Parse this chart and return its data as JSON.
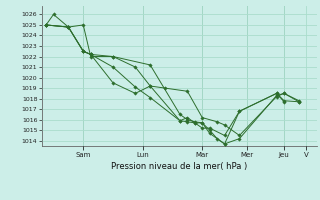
{
  "background_color": "#cceee8",
  "grid_color": "#aaddcc",
  "line_color": "#2d6e2d",
  "marker_color": "#2d6e2d",
  "xlabel": "Pression niveau de la mer( hPa )",
  "ylim": [
    1013.5,
    1026.8
  ],
  "yticks": [
    1014,
    1015,
    1016,
    1017,
    1018,
    1019,
    1020,
    1021,
    1022,
    1023,
    1024,
    1025,
    1026
  ],
  "series": [
    {
      "x": [
        0,
        0.5,
        1.5,
        2.5,
        3.0,
        4.5,
        6.0,
        7.0,
        9.0,
        9.5,
        10.0,
        10.5,
        11.0,
        12.0,
        13.0,
        15.5,
        16.0,
        17.0
      ],
      "y": [
        1025.0,
        1026.0,
        1024.8,
        1022.5,
        1022.2,
        1021.0,
        1019.1,
        1018.1,
        1015.9,
        1016.2,
        1015.7,
        1015.7,
        1014.7,
        1013.7,
        1014.2,
        1018.3,
        1018.5,
        1017.7
      ]
    },
    {
      "x": [
        0,
        1.5,
        2.5,
        3.0,
        4.5,
        6.0,
        7.0,
        9.0,
        9.5,
        10.0,
        10.5,
        11.0,
        12.0,
        13.0,
        15.5,
        16.0
      ],
      "y": [
        1025.0,
        1024.8,
        1022.5,
        1022.2,
        1019.5,
        1018.5,
        1019.2,
        1015.9,
        1015.8,
        1015.7,
        1015.2,
        1015.2,
        1014.5,
        1016.8,
        1018.5,
        1017.7
      ]
    },
    {
      "x": [
        0,
        1.5,
        2.5,
        3.0,
        4.5,
        7.0,
        9.0,
        9.5,
        10.0,
        10.5,
        11.0,
        11.5,
        12.0,
        13.0,
        15.5,
        16.0,
        17.0
      ],
      "y": [
        1025.0,
        1024.8,
        1025.0,
        1022.0,
        1022.0,
        1021.2,
        1016.5,
        1016.0,
        1015.8,
        1015.7,
        1015.0,
        1014.2,
        1013.7,
        1016.8,
        1018.5,
        1017.8,
        1017.7
      ]
    },
    {
      "x": [
        0,
        1.5,
        2.5,
        3.0,
        4.5,
        6.0,
        7.0,
        8.0,
        9.5,
        10.5,
        11.5,
        12.0,
        13.0,
        15.5,
        16.0,
        17.0
      ],
      "y": [
        1025.0,
        1024.8,
        1022.5,
        1022.2,
        1022.0,
        1021.0,
        1019.2,
        1019.0,
        1018.7,
        1016.2,
        1015.8,
        1015.5,
        1014.5,
        1018.2,
        1018.5,
        1017.8
      ]
    }
  ],
  "xtick_positions": [
    2.5,
    6.5,
    10.5,
    13.5,
    16.0,
    17.5
  ],
  "xtick_day_labels": [
    "Sam",
    "Lun",
    "Mar",
    "Mer",
    "Jeu",
    "V"
  ],
  "vline_positions": [
    2.5,
    6.5,
    10.5,
    13.5,
    16.0
  ],
  "xlim": [
    -0.3,
    18.2
  ]
}
